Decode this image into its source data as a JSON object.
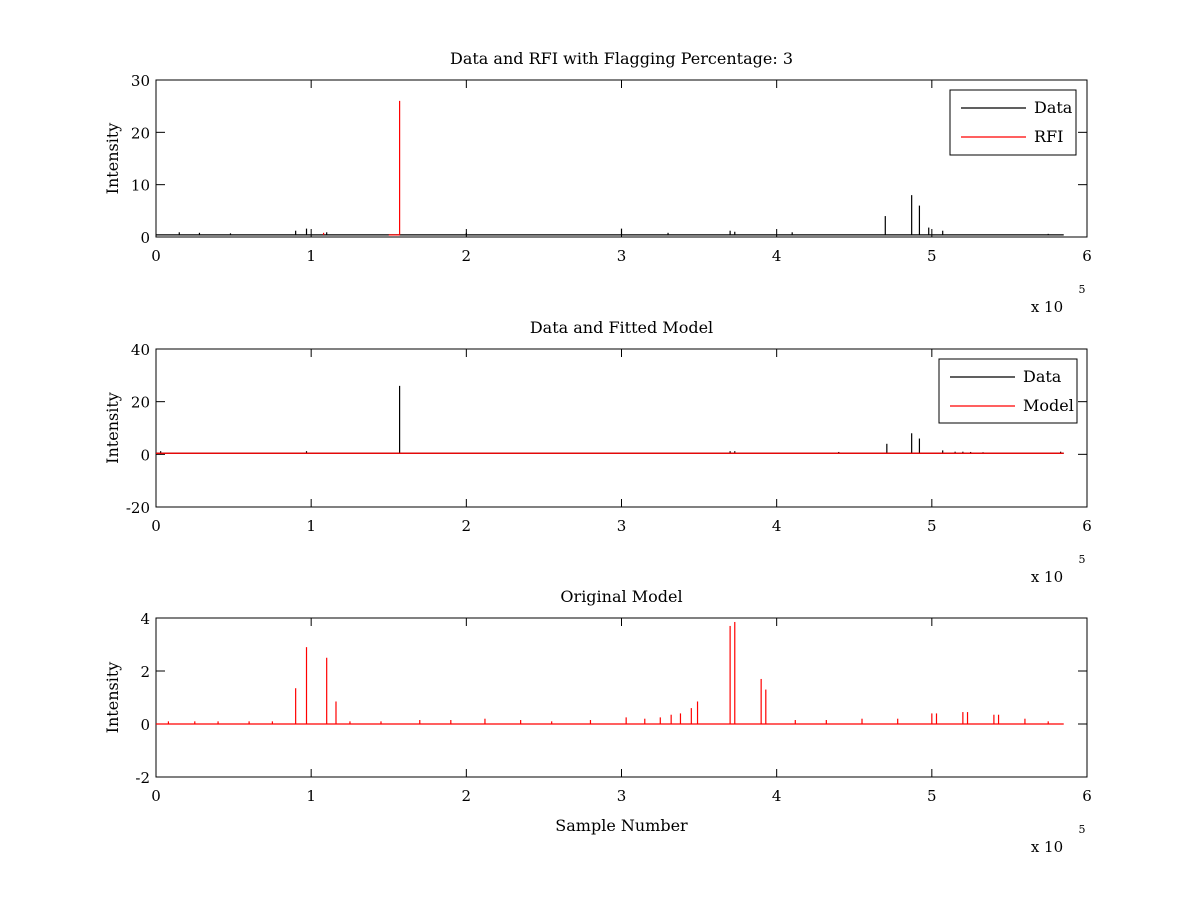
{
  "figure": {
    "background": "#ffffff",
    "colors": {
      "data": "#000000",
      "rfi": "#ff0000",
      "model": "#ff0000"
    }
  },
  "chart_data": [
    {
      "type": "line",
      "title": "Data and RFI with Flagging Percentage: 3",
      "xlabel": "",
      "ylabel": "Intensity",
      "xlim": [
        0,
        600000
      ],
      "ylim": [
        0,
        30
      ],
      "xticks": [
        0,
        1,
        2,
        3,
        4,
        5,
        6
      ],
      "yticks": [
        0,
        10,
        20,
        30
      ],
      "x_multiplier": "x 10",
      "x_exponent": "5",
      "legend": {
        "position": "top-right",
        "entries": [
          "Data",
          "RFI"
        ]
      },
      "baseline": 0.4,
      "series": [
        {
          "name": "Data",
          "color": "#000000",
          "span": [
            0,
            585000
          ],
          "spikes": [
            [
              15000,
              0.9
            ],
            [
              28000,
              0.8
            ],
            [
              48000,
              0.7
            ],
            [
              90000,
              1.2
            ],
            [
              97000,
              1.6
            ],
            [
              110000,
              0.9
            ],
            [
              200000,
              0.8
            ],
            [
              300000,
              1.6
            ],
            [
              330000,
              0.8
            ],
            [
              370000,
              1.2
            ],
            [
              373000,
              1.0
            ],
            [
              410000,
              0.9
            ],
            [
              470000,
              4.0
            ],
            [
              487000,
              8.0
            ],
            [
              492000,
              6.0
            ],
            [
              498000,
              1.8
            ],
            [
              507000,
              1.2
            ],
            [
              575000,
              0.6
            ]
          ]
        },
        {
          "name": "RFI",
          "color": "#ff0000",
          "span": [
            150000,
            157000
          ],
          "spikes": [
            [
              157000,
              26.0
            ],
            [
              108000,
              0.8
            ]
          ]
        }
      ]
    },
    {
      "type": "line",
      "title": "Data and Fitted Model",
      "xlabel": "",
      "ylabel": "Intensity",
      "xlim": [
        0,
        600000
      ],
      "ylim": [
        -20,
        40
      ],
      "xticks": [
        0,
        1,
        2,
        3,
        4,
        5,
        6
      ],
      "yticks": [
        -20,
        0,
        20,
        40
      ],
      "x_multiplier": "x 10",
      "x_exponent": "5",
      "legend": {
        "position": "top-right",
        "entries": [
          "Data",
          "Model"
        ]
      },
      "baseline": 0.4,
      "series": [
        {
          "name": "Data",
          "color": "#000000",
          "span": [
            0,
            585000
          ],
          "spikes": [
            [
              3000,
              1.2
            ],
            [
              97000,
              1.2
            ],
            [
              157000,
              26.0
            ],
            [
              370000,
              1.2
            ],
            [
              373000,
              1.2
            ],
            [
              440000,
              0.9
            ],
            [
              471000,
              4.0
            ],
            [
              487000,
              8.0
            ],
            [
              492000,
              6.0
            ],
            [
              507000,
              1.5
            ],
            [
              515000,
              1.0
            ],
            [
              520000,
              1.0
            ],
            [
              525000,
              0.9
            ],
            [
              533000,
              0.8
            ],
            [
              583000,
              1.0
            ]
          ]
        },
        {
          "name": "Model",
          "color": "#ff0000",
          "span": [
            0,
            585000
          ],
          "spikes": []
        }
      ]
    },
    {
      "type": "line",
      "title": "Original Model",
      "xlabel": "Sample Number",
      "ylabel": "Intensity",
      "xlim": [
        0,
        600000
      ],
      "ylim": [
        -2,
        4
      ],
      "xticks": [
        0,
        1,
        2,
        3,
        4,
        5,
        6
      ],
      "yticks": [
        -2,
        0,
        2,
        4
      ],
      "x_multiplier": "x 10",
      "x_exponent": "5",
      "baseline": 0.0,
      "series": [
        {
          "name": "",
          "color": "#ff0000",
          "span": [
            0,
            585000
          ],
          "spikes": [
            [
              8000,
              0.1
            ],
            [
              25000,
              0.1
            ],
            [
              40000,
              0.1
            ],
            [
              60000,
              0.1
            ],
            [
              75000,
              0.1
            ],
            [
              90000,
              1.35
            ],
            [
              97000,
              2.9
            ],
            [
              110000,
              2.5
            ],
            [
              116000,
              0.85
            ],
            [
              125000,
              0.1
            ],
            [
              145000,
              0.1
            ],
            [
              170000,
              0.15
            ],
            [
              190000,
              0.15
            ],
            [
              212000,
              0.2
            ],
            [
              235000,
              0.15
            ],
            [
              255000,
              0.1
            ],
            [
              280000,
              0.15
            ],
            [
              303000,
              0.25
            ],
            [
              315000,
              0.2
            ],
            [
              325000,
              0.25
            ],
            [
              332000,
              0.35
            ],
            [
              338000,
              0.4
            ],
            [
              345000,
              0.6
            ],
            [
              349000,
              0.85
            ],
            [
              370000,
              3.7
            ],
            [
              373000,
              3.85
            ],
            [
              390000,
              1.7
            ],
            [
              393000,
              1.3
            ],
            [
              412000,
              0.15
            ],
            [
              432000,
              0.15
            ],
            [
              455000,
              0.2
            ],
            [
              478000,
              0.2
            ],
            [
              500000,
              0.4
            ],
            [
              503000,
              0.4
            ],
            [
              520000,
              0.45
            ],
            [
              523000,
              0.45
            ],
            [
              540000,
              0.35
            ],
            [
              543000,
              0.35
            ],
            [
              560000,
              0.2
            ],
            [
              575000,
              0.1
            ]
          ]
        }
      ]
    }
  ]
}
